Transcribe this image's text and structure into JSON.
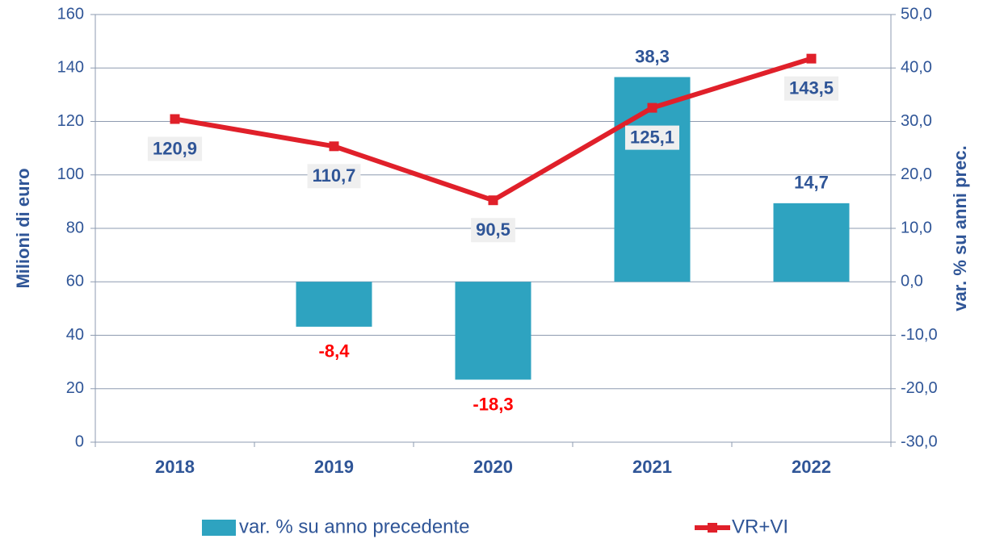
{
  "chart_data": {
    "type": "bar+line",
    "y_label": "Milioni di euro",
    "y2_label": "var. % su anni prec.",
    "categories": [
      "2018",
      "2019",
      "2020",
      "2021",
      "2022"
    ],
    "series": [
      {
        "name": "var. % su anno precedente",
        "color": "#2ea3c0",
        "type": "bar",
        "axis": "y2",
        "values": [
          null,
          -8.4,
          -18.3,
          38.3,
          14.7
        ],
        "value_labels": [
          null,
          "-8,4",
          "-18,3",
          "38,3",
          "14,7"
        ]
      },
      {
        "name": "VR+VI",
        "color": "#e0202a",
        "type": "line",
        "axis": "y",
        "values": [
          120.9,
          110.7,
          90.5,
          125.1,
          143.5
        ],
        "value_labels": [
          "120,9",
          "110,7",
          "90,5",
          "125,1",
          "143,5"
        ]
      }
    ],
    "label_color": "#2f5597",
    "negative_label_color": "#ff0000",
    "ylim": [
      0,
      160
    ],
    "yticks": [
      0,
      20,
      40,
      60,
      80,
      100,
      120,
      140,
      160
    ],
    "y2lim": [
      -30,
      50
    ],
    "y2ticks": [
      {
        "value": -30,
        "label": "-30,0"
      },
      {
        "value": -20,
        "label": "-20,0"
      },
      {
        "value": -10,
        "label": "-10,0"
      },
      {
        "value": 0,
        "label": "0,0"
      },
      {
        "value": 10,
        "label": "10,0"
      },
      {
        "value": 20,
        "label": "20,0"
      },
      {
        "value": 30,
        "label": "30,0"
      },
      {
        "value": 40,
        "label": "40,0"
      },
      {
        "value": 50,
        "label": "50,0"
      }
    ],
    "grid": true,
    "legend": "bottom"
  }
}
